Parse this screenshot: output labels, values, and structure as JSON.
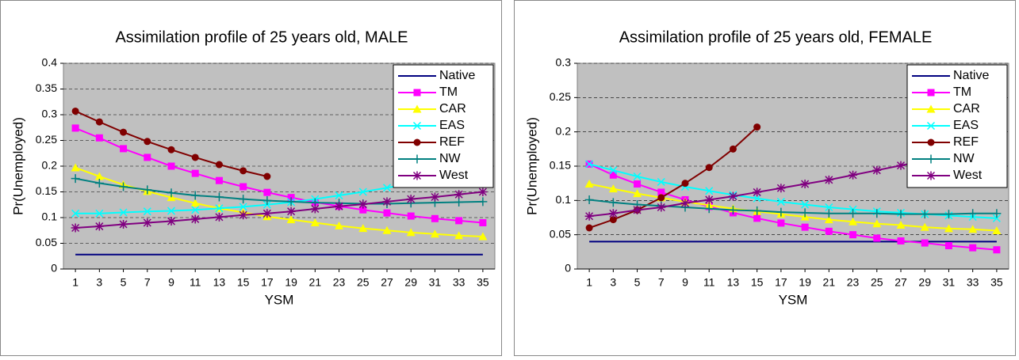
{
  "chart_data": [
    {
      "type": "line",
      "title": "Assimilation profile of 25 years old, MALE",
      "xlabel": "YSM",
      "ylabel": "Pr(Unemployed)",
      "x": [
        1,
        3,
        5,
        7,
        9,
        11,
        13,
        15,
        17,
        19,
        21,
        23,
        25,
        27,
        29,
        31,
        33,
        35
      ],
      "ylim": [
        0,
        0.4
      ],
      "yticks": [
        0,
        0.05,
        0.1,
        0.15,
        0.2,
        0.25,
        0.3,
        0.35,
        0.4
      ],
      "grid": true,
      "legend": "upper right",
      "series": [
        {
          "name": "Native",
          "color": "#000080",
          "marker": "none",
          "values": [
            0.028,
            0.028,
            0.028,
            0.028,
            0.028,
            0.028,
            0.028,
            0.028,
            0.028,
            0.028,
            0.028,
            0.028,
            0.028,
            0.028,
            0.028,
            0.028,
            0.028,
            0.028
          ]
        },
        {
          "name": "TM",
          "color": "#ff00ff",
          "marker": "square",
          "values": [
            0.274,
            0.255,
            0.234,
            0.217,
            0.2,
            0.186,
            0.172,
            0.16,
            0.149,
            0.139,
            0.13,
            0.122,
            0.115,
            0.109,
            0.103,
            0.098,
            0.094,
            0.09
          ]
        },
        {
          "name": "CAR",
          "color": "#ffff00",
          "marker": "triangle",
          "values": [
            0.197,
            0.18,
            0.164,
            0.151,
            0.139,
            0.128,
            0.118,
            0.11,
            0.102,
            0.096,
            0.09,
            0.084,
            0.079,
            0.075,
            0.071,
            0.068,
            0.065,
            0.063
          ]
        },
        {
          "name": "EAS",
          "color": "#00ffff",
          "marker": "x",
          "values": [
            0.108,
            0.108,
            0.11,
            0.112,
            0.113,
            0.115,
            0.118,
            0.121,
            0.125,
            0.13,
            0.136,
            0.143,
            0.15,
            0.158,
            0.166,
            0.176,
            0.186,
            0.197
          ]
        },
        {
          "name": "REF",
          "color": "#800000",
          "marker": "circle",
          "values": [
            0.307,
            0.286,
            0.266,
            0.248,
            0.232,
            0.217,
            0.203,
            0.191,
            0.18,
            null,
            null,
            null,
            null,
            null,
            null,
            null,
            null,
            null
          ]
        },
        {
          "name": "NW",
          "color": "#008080",
          "marker": "plus",
          "values": [
            0.176,
            0.167,
            0.16,
            0.154,
            0.148,
            0.143,
            0.14,
            0.136,
            0.133,
            0.131,
            0.129,
            0.128,
            0.127,
            0.127,
            0.128,
            0.129,
            0.13,
            0.131
          ]
        },
        {
          "name": "West",
          "color": "#800080",
          "marker": "star",
          "values": [
            0.08,
            0.083,
            0.087,
            0.09,
            0.093,
            0.097,
            0.101,
            0.105,
            0.108,
            0.112,
            0.117,
            0.122,
            0.126,
            0.131,
            0.136,
            0.14,
            0.145,
            0.15
          ]
        }
      ]
    },
    {
      "type": "line",
      "title": "Assimilation profile of 25 years old, FEMALE",
      "xlabel": "YSM",
      "ylabel": "Pr(Unemployed)",
      "x": [
        1,
        3,
        5,
        7,
        9,
        11,
        13,
        15,
        17,
        19,
        21,
        23,
        25,
        27,
        29,
        31,
        33,
        35
      ],
      "ylim": [
        0,
        0.3
      ],
      "yticks": [
        0,
        0.05,
        0.1,
        0.15,
        0.2,
        0.25,
        0.3
      ],
      "grid": true,
      "legend": "upper right",
      "series": [
        {
          "name": "Native",
          "color": "#000080",
          "marker": "none",
          "values": [
            0.04,
            0.04,
            0.04,
            0.04,
            0.04,
            0.04,
            0.04,
            0.04,
            0.04,
            0.04,
            0.04,
            0.04,
            0.04,
            0.04,
            0.04,
            0.04,
            0.04,
            0.04
          ]
        },
        {
          "name": "TM",
          "color": "#ff00ff",
          "marker": "square",
          "values": [
            0.153,
            0.137,
            0.124,
            0.112,
            0.101,
            0.091,
            0.082,
            0.074,
            0.067,
            0.061,
            0.055,
            0.05,
            0.045,
            0.041,
            0.038,
            0.034,
            0.031,
            0.028
          ]
        },
        {
          "name": "CAR",
          "color": "#ffff00",
          "marker": "triangle",
          "values": [
            0.124,
            0.117,
            0.11,
            0.104,
            0.098,
            0.093,
            0.088,
            0.084,
            0.08,
            0.076,
            0.072,
            0.069,
            0.066,
            0.064,
            0.061,
            0.059,
            0.058,
            0.056
          ]
        },
        {
          "name": "EAS",
          "color": "#00ffff",
          "marker": "x",
          "values": [
            0.153,
            0.144,
            0.135,
            0.127,
            0.12,
            0.114,
            0.108,
            0.103,
            0.098,
            0.094,
            0.09,
            0.087,
            0.084,
            0.082,
            0.08,
            0.078,
            0.076,
            0.074
          ]
        },
        {
          "name": "REF",
          "color": "#800000",
          "marker": "circle",
          "values": [
            0.06,
            0.072,
            0.086,
            0.104,
            0.125,
            0.148,
            0.175,
            0.207,
            null,
            null,
            null,
            null,
            null,
            null,
            null,
            null,
            null,
            null
          ]
        },
        {
          "name": "NW",
          "color": "#008080",
          "marker": "plus",
          "values": [
            0.101,
            0.097,
            0.094,
            0.092,
            0.09,
            0.088,
            0.086,
            0.085,
            0.083,
            0.082,
            0.081,
            0.081,
            0.081,
            0.08,
            0.08,
            0.08,
            0.081,
            0.081
          ]
        },
        {
          "name": "West",
          "color": "#800080",
          "marker": "star",
          "values": [
            0.077,
            0.081,
            0.086,
            0.09,
            0.096,
            0.101,
            0.106,
            0.112,
            0.118,
            0.124,
            0.13,
            0.137,
            0.144,
            0.151,
            0.158,
            0.166,
            0.173,
            0.181
          ]
        }
      ]
    }
  ]
}
